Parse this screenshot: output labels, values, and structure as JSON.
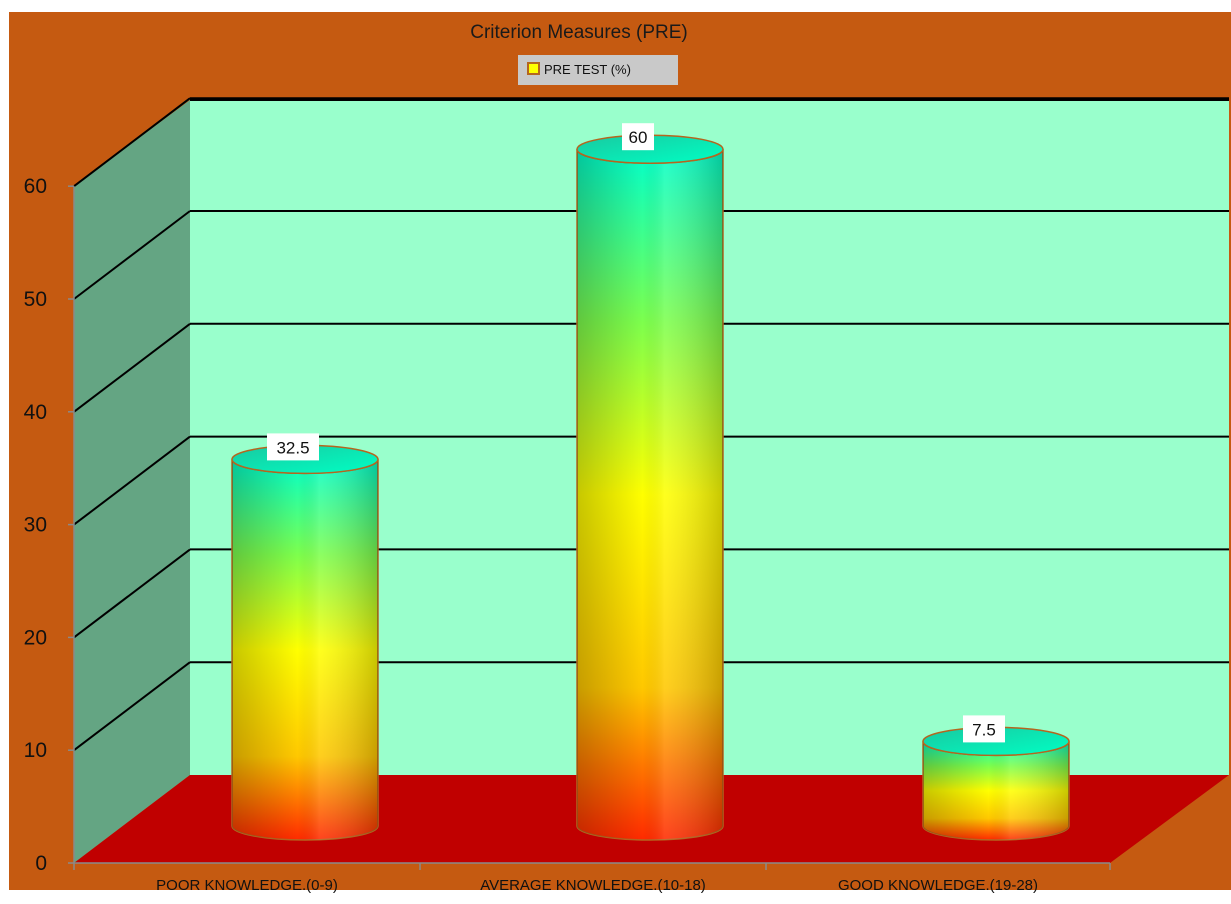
{
  "chart_data": {
    "type": "bar",
    "title": "Criterion Measures  (PRE)",
    "categories": [
      "POOR KNOWLEDGE.(0-9)",
      "AVERAGE KNOWLEDGE.(10-18)",
      "GOOD KNOWLEDGE.(19-28)"
    ],
    "series": [
      {
        "name": "PRE TEST  (%)",
        "values": [
          32.5,
          60,
          7.5
        ]
      }
    ],
    "data_labels": [
      "32.5",
      "60",
      "7.5"
    ],
    "ylim": [
      0,
      60
    ],
    "yticks": [
      "0",
      "10",
      "20",
      "30",
      "40",
      "50",
      "60"
    ],
    "legend_position": "top",
    "grid": true,
    "bar_shape": "cylinder",
    "colors": {
      "frame": "#c55a11",
      "back_wall": "#99ffcc",
      "side_wall": "#64a583",
      "floor": "#c00000",
      "bar_top": "#00e6b0",
      "bar_mid": "#ffff00",
      "bar_bottom": "#ff2a00",
      "bar_outline": "#b5661f"
    }
  }
}
